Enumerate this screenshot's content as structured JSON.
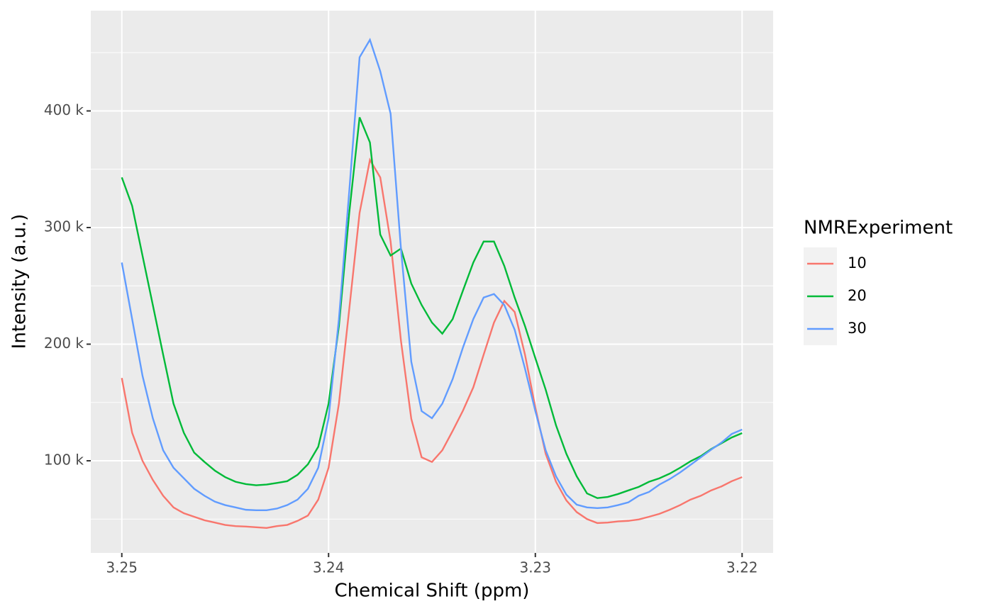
{
  "chart_data": {
    "type": "line",
    "x_label": "Chemical Shift (ppm)",
    "y_label": "Intensity (a.u.)",
    "legend_title": "NMRExperiment",
    "x": [
      3.25,
      3.2495,
      3.249,
      3.2485,
      3.248,
      3.2475,
      3.247,
      3.2465,
      3.246,
      3.2455,
      3.245,
      3.2445,
      3.244,
      3.2435,
      3.243,
      3.2425,
      3.242,
      3.2415,
      3.241,
      3.2405,
      3.24,
      3.2395,
      3.239,
      3.2385,
      3.238,
      3.2375,
      3.237,
      3.2365,
      3.236,
      3.2355,
      3.235,
      3.2345,
      3.234,
      3.2335,
      3.233,
      3.2325,
      3.232,
      3.2315,
      3.231,
      3.2305,
      3.23,
      3.2295,
      3.229,
      3.2285,
      3.228,
      3.2275,
      3.227,
      3.2265,
      3.226,
      3.2255,
      3.225,
      3.2245,
      3.224,
      3.2235,
      3.223,
      3.2225,
      3.222,
      3.2215,
      3.221,
      3.2205,
      3.22
    ],
    "series": [
      {
        "name": "10",
        "color": "#F8766D",
        "values": [
          171000,
          124000,
          100000,
          83600,
          70000,
          60000,
          55000,
          52000,
          49000,
          47000,
          45000,
          44000,
          43600,
          43000,
          42400,
          44000,
          45000,
          48500,
          53000,
          66700,
          94000,
          149000,
          230000,
          312600,
          358000,
          343000,
          288000,
          203000,
          136000,
          103000,
          99000,
          109000,
          125600,
          143000,
          163000,
          191000,
          218500,
          237000,
          227600,
          191000,
          145600,
          106000,
          82000,
          66000,
          56000,
          50000,
          46600,
          47000,
          48000,
          48500,
          49700,
          52000,
          54500,
          58000,
          62000,
          66700,
          70000,
          74600,
          78000,
          82500,
          86000
        ]
      },
      {
        "name": "20",
        "color": "#00BA38",
        "values": [
          343000,
          318600,
          276000,
          233600,
          191000,
          149000,
          124000,
          107000,
          99000,
          91600,
          86000,
          82000,
          80000,
          79000,
          79600,
          81000,
          82500,
          88000,
          97000,
          112000,
          149000,
          215500,
          312600,
          394500,
          373000,
          294000,
          276000,
          282000,
          252000,
          233600,
          218500,
          209000,
          221500,
          246000,
          270000,
          288000,
          288000,
          267000,
          240000,
          215500,
          188000,
          161000,
          130400,
          106000,
          86700,
          72000,
          68000,
          69000,
          71500,
          74600,
          77600,
          82000,
          85000,
          89000,
          94000,
          99500,
          104000,
          110000,
          115000,
          120000,
          123700
        ]
      },
      {
        "name": "30",
        "color": "#619CFF",
        "values": [
          270000,
          221500,
          173000,
          136500,
          109000,
          94000,
          85000,
          76000,
          70000,
          65000,
          62000,
          60000,
          58000,
          57600,
          57600,
          59000,
          62000,
          66700,
          76000,
          94000,
          136500,
          221500,
          331000,
          446000,
          461000,
          434000,
          397600,
          282000,
          185000,
          142600,
          136500,
          149000,
          170000,
          197200,
          221500,
          240000,
          243000,
          233600,
          212400,
          179000,
          142600,
          109000,
          86700,
          71000,
          62400,
          60000,
          59400,
          60000,
          62000,
          64400,
          70000,
          73300,
          79600,
          84300,
          90000,
          96400,
          103000,
          109500,
          115600,
          123000,
          126800
        ]
      }
    ],
    "xlim": [
      3.2515,
      3.2185
    ],
    "xticks": [
      3.25,
      3.24,
      3.23,
      3.22
    ],
    "ylim": [
      21000,
      486000
    ],
    "yticks": [
      {
        "value": 100000,
        "label": "100 k"
      },
      {
        "value": 200000,
        "label": "200 k"
      },
      {
        "value": 300000,
        "label": "300 k"
      },
      {
        "value": 400000,
        "label": "400 k"
      }
    ],
    "grid": true,
    "panel_color": "#EBEBEB",
    "legend_position": "right"
  }
}
